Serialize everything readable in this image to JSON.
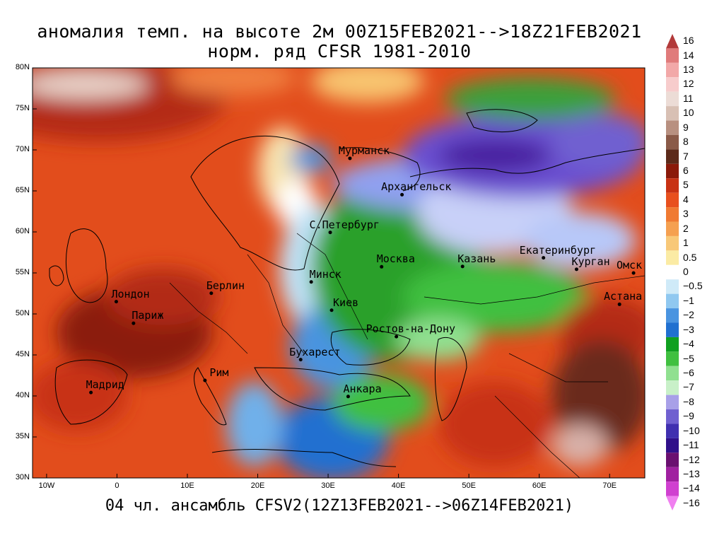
{
  "title_line1": "аномалия темп. на высоте 2м 00Z15FEB2021-->18Z21FEB2021",
  "title_line2": "норм. ряд CFSR 1981-2010",
  "footer": "04 чл. ансамбль CFSV2(12Z13FEB2021-->06Z14FEB2021)",
  "lat_labels": [
    "80N",
    "75N",
    "70N",
    "65N",
    "60N",
    "55N",
    "50N",
    "45N",
    "40N",
    "35N",
    "30N"
  ],
  "lon_labels": [
    "10W",
    "0",
    "10E",
    "20E",
    "30E",
    "40E",
    "50E",
    "60E",
    "70E"
  ],
  "cities": [
    {
      "name": "Мурманск",
      "lon": 33.1,
      "lat": 68.97
    },
    {
      "name": "Архангельск",
      "lon": 40.5,
      "lat": 64.54
    },
    {
      "name": "С.Петербург",
      "lon": 30.3,
      "lat": 59.94
    },
    {
      "name": "Москва",
      "lon": 37.6,
      "lat": 55.75
    },
    {
      "name": "Казань",
      "lon": 49.1,
      "lat": 55.79
    },
    {
      "name": "Екатеринбург",
      "lon": 60.6,
      "lat": 56.84
    },
    {
      "name": "Курган",
      "lon": 65.3,
      "lat": 55.44
    },
    {
      "name": "Омск",
      "lon": 73.4,
      "lat": 54.99
    },
    {
      "name": "Астана",
      "lon": 71.4,
      "lat": 51.17
    },
    {
      "name": "Минск",
      "lon": 27.6,
      "lat": 53.9
    },
    {
      "name": "Берлин",
      "lon": 13.4,
      "lat": 52.52
    },
    {
      "name": "Лондон",
      "lon": -0.1,
      "lat": 51.5
    },
    {
      "name": "Париж",
      "lon": 2.35,
      "lat": 48.86
    },
    {
      "name": "Киев",
      "lon": 30.5,
      "lat": 50.45
    },
    {
      "name": "Ростов-на-Дону",
      "lon": 39.7,
      "lat": 47.23
    },
    {
      "name": "Бухарест",
      "lon": 26.1,
      "lat": 44.43
    },
    {
      "name": "Рим",
      "lon": 12.5,
      "lat": 41.9
    },
    {
      "name": "Мадрид",
      "lon": -3.7,
      "lat": 40.42
    },
    {
      "name": "Анкара",
      "lon": 32.85,
      "lat": 39.93
    }
  ],
  "legend": {
    "labels": [
      "16",
      "14",
      "13",
      "12",
      "11",
      "10",
      "9",
      "8",
      "7",
      "6",
      "5",
      "4",
      "3",
      "2",
      "1",
      "0.5",
      "0",
      "−0.5",
      "−1",
      "−2",
      "−3",
      "−4",
      "−5",
      "−6",
      "−7",
      "−8",
      "−9",
      "−10",
      "−11",
      "−12",
      "−13",
      "−14",
      "−16"
    ],
    "colors": [
      "#b23a3a",
      "#e07b7b",
      "#f2a8a8",
      "#f7cccc",
      "#ecdcd6",
      "#d8c0b4",
      "#b89080",
      "#8a5a48",
      "#5c2a1a",
      "#8b1a0a",
      "#c83214",
      "#e8501e",
      "#f07a32",
      "#f5a050",
      "#f8c878",
      "#fbeba4",
      "#ffffff",
      "#cfeaf8",
      "#90c8f0",
      "#4a94e0",
      "#2070d0",
      "#10a020",
      "#40c040",
      "#90e090",
      "#c8f0c8",
      "#a8a0e8",
      "#7060d0",
      "#4030b0",
      "#30108a",
      "#6a1070",
      "#a020a0",
      "#d040d0",
      "#f080f0"
    ]
  },
  "colors": {
    "warm_dark": "#8b1a0a",
    "warm": "#e8501e",
    "cold_green": "#10a020",
    "cold_blue": "#2070d0",
    "cold_purple": "#4030b0"
  }
}
